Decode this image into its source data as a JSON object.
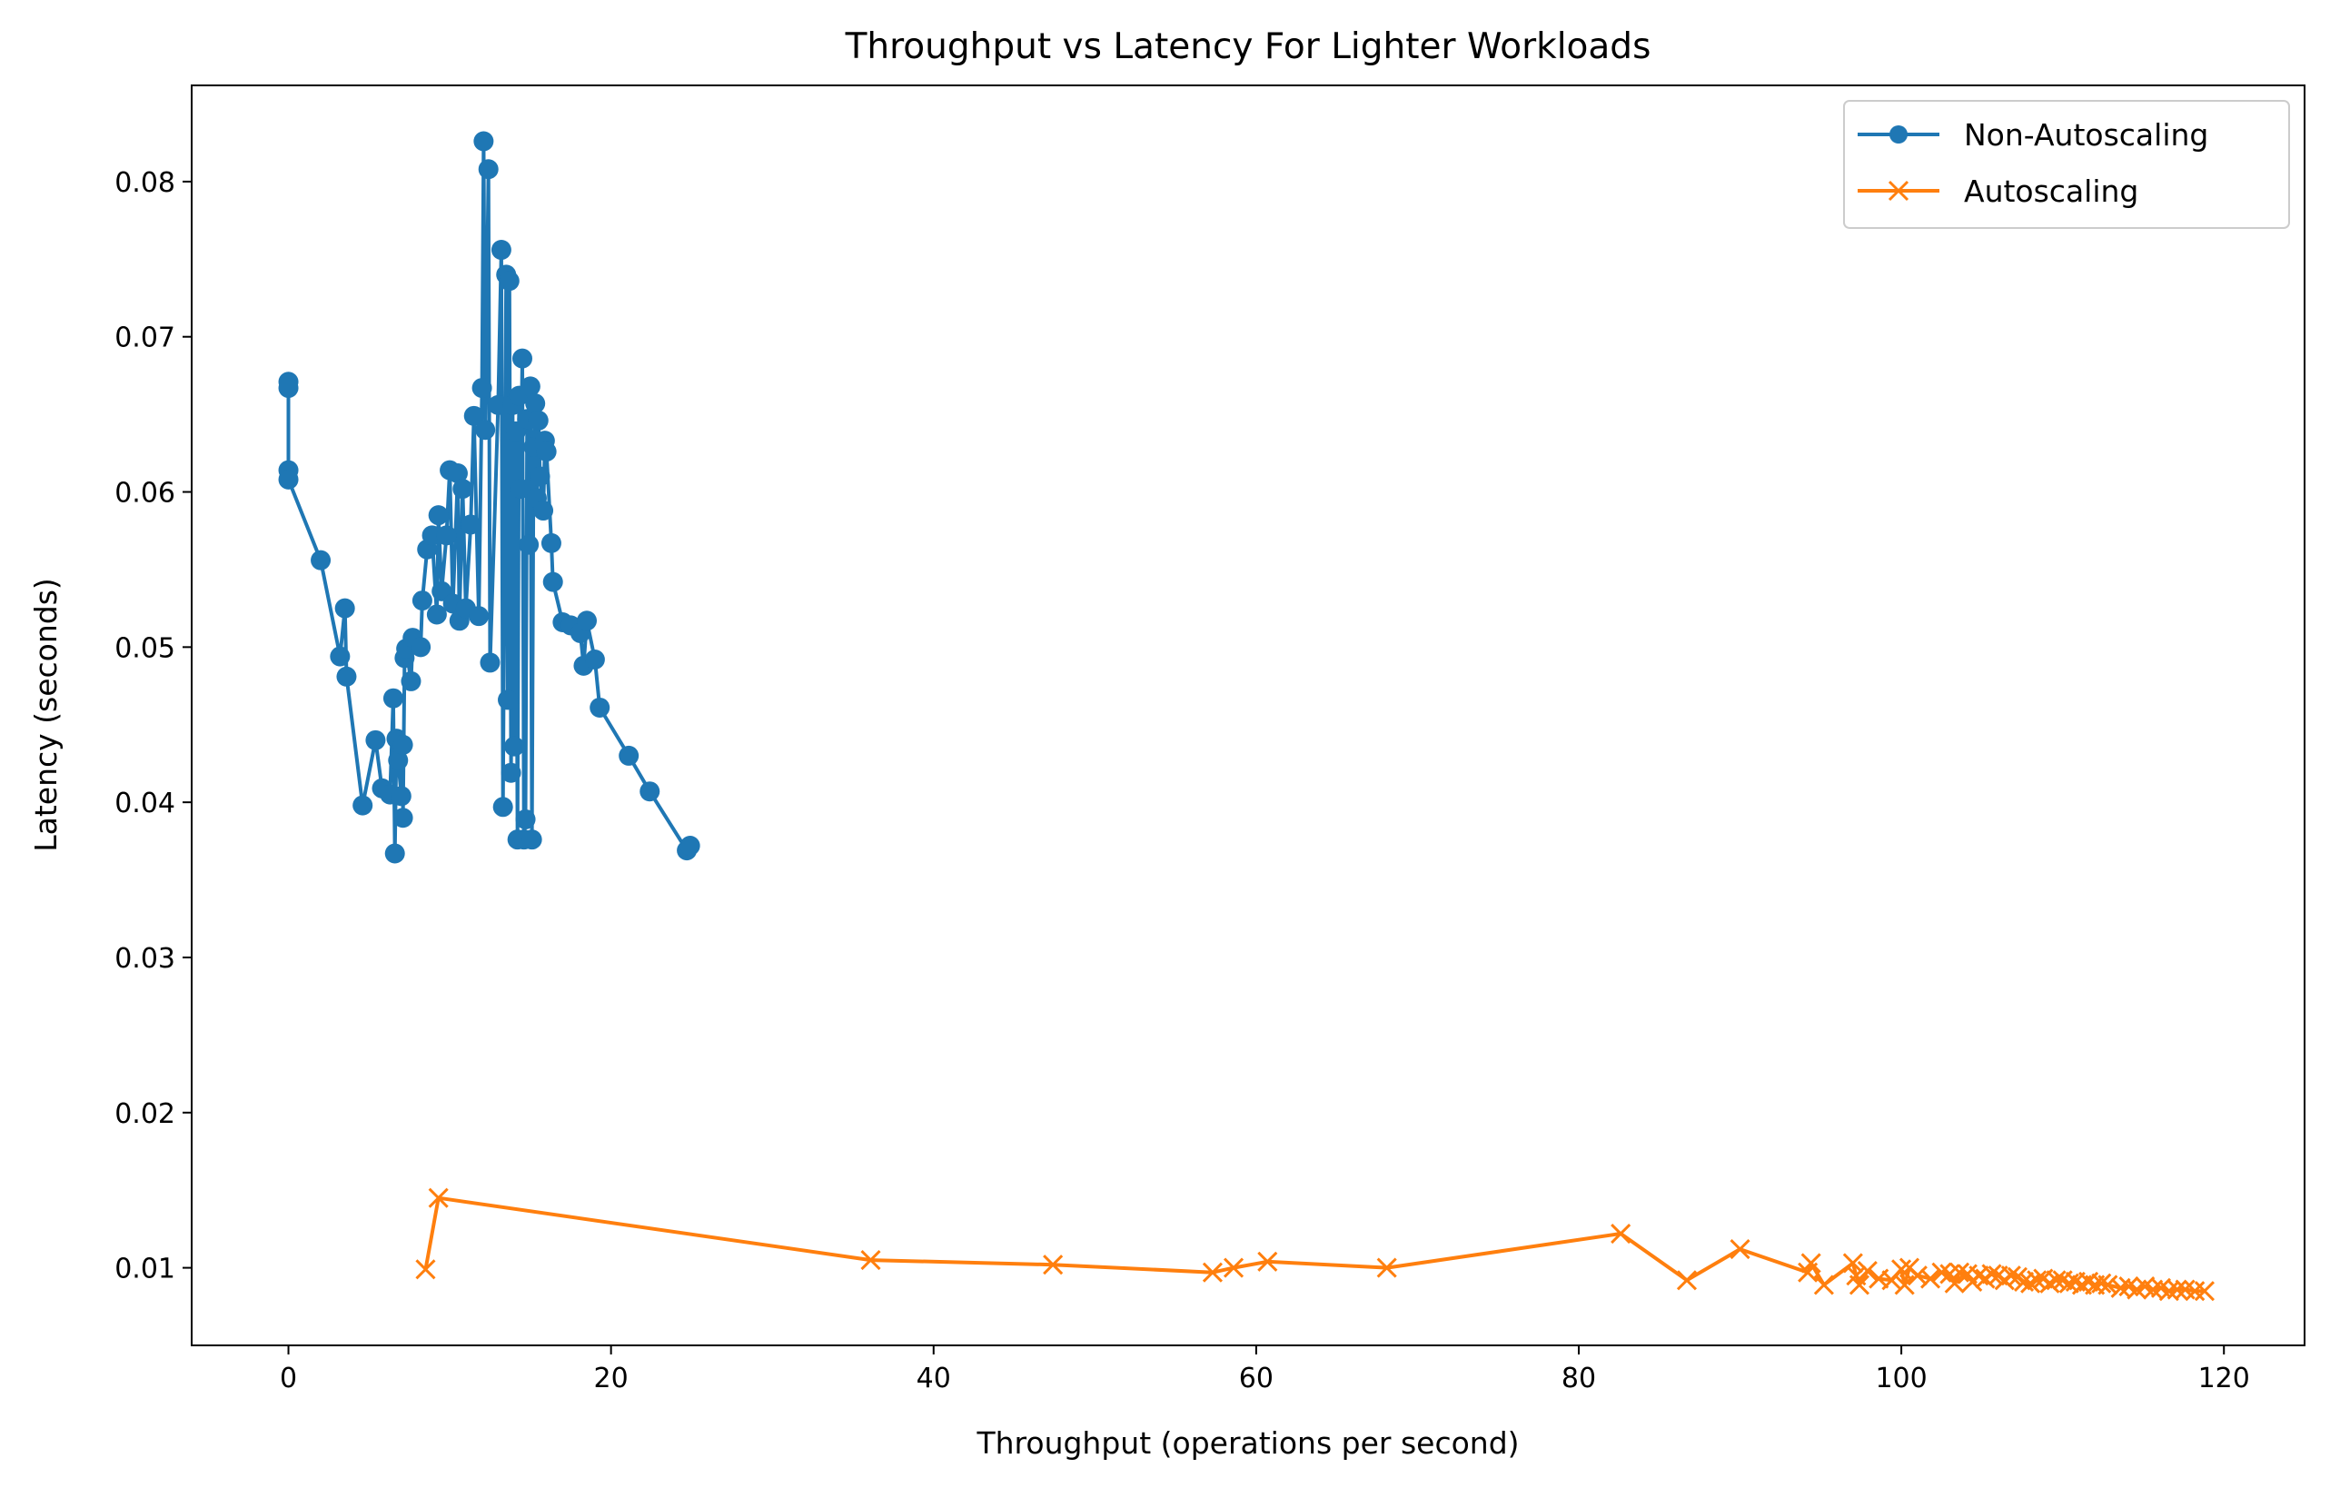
{
  "chart_data": {
    "type": "line",
    "title": "Throughput vs Latency For Lighter Workloads",
    "xlabel": "Throughput (operations per second)",
    "ylabel": "Latency (seconds)",
    "xlim": [
      -6,
      125
    ],
    "ylim": [
      0.005,
      0.0862
    ],
    "xticks": [
      0,
      20,
      40,
      60,
      80,
      100,
      120
    ],
    "yticks": [
      0.01,
      0.02,
      0.03,
      0.04,
      0.05,
      0.06,
      0.07,
      0.08
    ],
    "xtick_labels": [
      "0",
      "20",
      "40",
      "60",
      "80",
      "100",
      "120"
    ],
    "ytick_labels": [
      "0.01",
      "0.02",
      "0.03",
      "0.04",
      "0.05",
      "0.06",
      "0.07",
      "0.08"
    ],
    "grid": false,
    "legend_position": "upper right",
    "series": [
      {
        "name": "Non-Autoscaling",
        "color": "#1f77b4",
        "marker": "circle",
        "points": [
          [
            0.0,
            0.0671
          ],
          [
            0.0,
            0.0667
          ],
          [
            0.0,
            0.0614
          ],
          [
            0.0,
            0.0608
          ],
          [
            2.0,
            0.0556
          ],
          [
            3.2,
            0.0494
          ],
          [
            3.5,
            0.0525
          ],
          [
            3.6,
            0.0481
          ],
          [
            4.6,
            0.0398
          ],
          [
            5.4,
            0.044
          ],
          [
            5.8,
            0.0409
          ],
          [
            6.3,
            0.0405
          ],
          [
            6.5,
            0.0467
          ],
          [
            6.6,
            0.0367
          ],
          [
            6.7,
            0.0441
          ],
          [
            6.8,
            0.0427
          ],
          [
            7.0,
            0.0404
          ],
          [
            7.1,
            0.0437
          ],
          [
            7.1,
            0.039
          ],
          [
            7.2,
            0.0493
          ],
          [
            7.3,
            0.0499
          ],
          [
            7.6,
            0.0478
          ],
          [
            7.7,
            0.0506
          ],
          [
            8.2,
            0.05
          ],
          [
            8.3,
            0.053
          ],
          [
            8.6,
            0.0563
          ],
          [
            8.9,
            0.0572
          ],
          [
            9.2,
            0.0521
          ],
          [
            9.3,
            0.0585
          ],
          [
            9.5,
            0.0536
          ],
          [
            9.8,
            0.0572
          ],
          [
            10.0,
            0.0614
          ],
          [
            10.2,
            0.0528
          ],
          [
            10.5,
            0.0612
          ],
          [
            10.6,
            0.0517
          ],
          [
            10.8,
            0.0602
          ],
          [
            11.0,
            0.0525
          ],
          [
            11.3,
            0.0579
          ],
          [
            11.5,
            0.0649
          ],
          [
            11.8,
            0.052
          ],
          [
            12.0,
            0.0667
          ],
          [
            12.1,
            0.0826
          ],
          [
            12.2,
            0.064
          ],
          [
            12.4,
            0.0808
          ],
          [
            12.5,
            0.049
          ],
          [
            13.0,
            0.0656
          ],
          [
            13.2,
            0.0756
          ],
          [
            13.3,
            0.0397
          ],
          [
            13.5,
            0.074
          ],
          [
            13.6,
            0.0466
          ],
          [
            13.7,
            0.0736
          ],
          [
            13.8,
            0.0419
          ],
          [
            13.9,
            0.0656
          ],
          [
            14.0,
            0.0436
          ],
          [
            14.1,
            0.0639
          ],
          [
            14.2,
            0.0376
          ],
          [
            14.3,
            0.0662
          ],
          [
            14.4,
            0.0602
          ],
          [
            14.5,
            0.0686
          ],
          [
            14.6,
            0.0376
          ],
          [
            14.7,
            0.0389
          ],
          [
            14.8,
            0.0647
          ],
          [
            14.9,
            0.0566
          ],
          [
            15.0,
            0.0668
          ],
          [
            15.1,
            0.0376
          ],
          [
            15.2,
            0.0629
          ],
          [
            15.3,
            0.0657
          ],
          [
            15.4,
            0.0596
          ],
          [
            15.5,
            0.0646
          ],
          [
            15.6,
            0.061
          ],
          [
            15.8,
            0.0588
          ],
          [
            15.9,
            0.0633
          ],
          [
            16.0,
            0.0626
          ],
          [
            16.3,
            0.0567
          ],
          [
            16.4,
            0.0542
          ],
          [
            17.0,
            0.0516
          ],
          [
            17.5,
            0.0514
          ],
          [
            18.1,
            0.0509
          ],
          [
            18.3,
            0.0488
          ],
          [
            18.5,
            0.0517
          ],
          [
            19.0,
            0.0492
          ],
          [
            19.3,
            0.0461
          ],
          [
            21.1,
            0.043
          ],
          [
            22.4,
            0.0407
          ],
          [
            24.7,
            0.0369
          ],
          [
            24.9,
            0.0372
          ]
        ]
      },
      {
        "name": "Autoscaling",
        "color": "#ff7f0e",
        "marker": "x",
        "points": [
          [
            8.5,
            0.0099
          ],
          [
            9.3,
            0.0145
          ],
          [
            36.1,
            0.0105
          ],
          [
            47.4,
            0.0102
          ],
          [
            57.3,
            0.0097
          ],
          [
            58.6,
            0.01
          ],
          [
            60.7,
            0.0104
          ],
          [
            68.1,
            0.01
          ],
          [
            82.6,
            0.0122
          ],
          [
            86.7,
            0.0092
          ],
          [
            90.0,
            0.0112
          ],
          [
            94.2,
            0.0097
          ],
          [
            94.4,
            0.0103
          ],
          [
            95.2,
            0.0089
          ],
          [
            97.0,
            0.0103
          ],
          [
            97.2,
            0.0095
          ],
          [
            97.4,
            0.0089
          ],
          [
            97.9,
            0.0098
          ],
          [
            98.6,
            0.0093
          ],
          [
            99.4,
            0.0092
          ],
          [
            100.0,
            0.0099
          ],
          [
            100.2,
            0.0089
          ],
          [
            100.5,
            0.01
          ],
          [
            101.0,
            0.0095
          ],
          [
            101.8,
            0.0093
          ],
          [
            102.5,
            0.0097
          ],
          [
            103.0,
            0.0096
          ],
          [
            103.3,
            0.009
          ],
          [
            103.6,
            0.0097
          ],
          [
            104.1,
            0.0096
          ],
          [
            104.4,
            0.0091
          ],
          [
            104.8,
            0.0095
          ],
          [
            105.2,
            0.0093
          ],
          [
            105.6,
            0.0096
          ],
          [
            106.0,
            0.0095
          ],
          [
            106.4,
            0.0092
          ],
          [
            106.8,
            0.0095
          ],
          [
            107.2,
            0.0094
          ],
          [
            107.6,
            0.0091
          ],
          [
            108.0,
            0.009
          ],
          [
            108.4,
            0.0092
          ],
          [
            108.8,
            0.0093
          ],
          [
            109.2,
            0.009
          ],
          [
            109.6,
            0.0092
          ],
          [
            110.0,
            0.0092
          ],
          [
            110.4,
            0.009
          ],
          [
            110.8,
            0.0091
          ],
          [
            111.2,
            0.0089
          ],
          [
            111.6,
            0.0091
          ],
          [
            112.0,
            0.0089
          ],
          [
            112.4,
            0.009
          ],
          [
            112.8,
            0.0089
          ],
          [
            113.6,
            0.0087
          ],
          [
            114.1,
            0.0088
          ],
          [
            114.6,
            0.0086
          ],
          [
            115.1,
            0.0088
          ],
          [
            115.6,
            0.0086
          ],
          [
            116.1,
            0.0087
          ],
          [
            116.6,
            0.0085
          ],
          [
            117.1,
            0.0086
          ],
          [
            117.6,
            0.0086
          ],
          [
            118.2,
            0.0085
          ],
          [
            118.8,
            0.0085
          ]
        ]
      }
    ]
  }
}
